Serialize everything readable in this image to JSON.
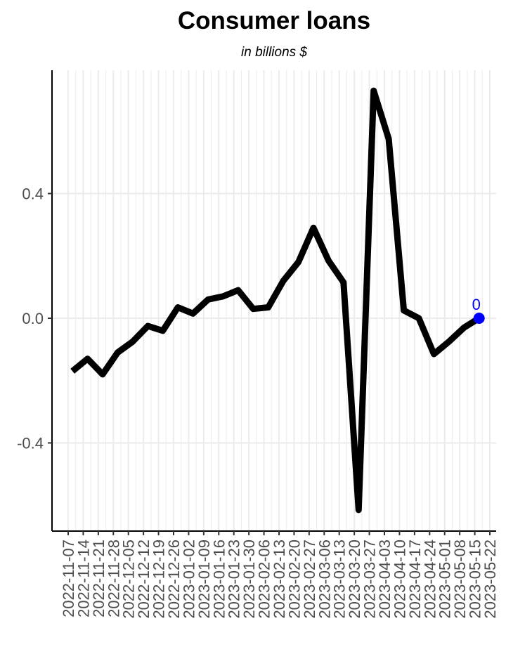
{
  "chart_data": {
    "type": "line",
    "title": "Consumer loans",
    "subtitle": "in billions $",
    "xlabel": "",
    "ylabel": "",
    "x_tick_labels": [
      "2022-11-07",
      "2022-11-14",
      "2022-11-21",
      "2022-11-28",
      "2022-12-05",
      "2022-12-12",
      "2022-12-19",
      "2022-12-26",
      "2023-01-02",
      "2023-01-09",
      "2023-01-16",
      "2023-01-23",
      "2023-01-30",
      "2023-02-06",
      "2023-02-13",
      "2023-02-20",
      "2023-02-27",
      "2023-03-06",
      "2023-03-13",
      "2023-03-20",
      "2023-03-27",
      "2023-04-03",
      "2023-04-10",
      "2023-04-17",
      "2023-04-24",
      "2023-05-01",
      "2023-05-08",
      "2023-05-15",
      "2023-05-22"
    ],
    "y_ticks": [
      -0.4,
      0.0,
      0.4
    ],
    "y_tick_labels": [
      "-0.4",
      "0.0",
      "0.4"
    ],
    "ylim": [
      -0.62,
      0.8
    ],
    "x_range": [
      "2022-11-07",
      "2023-05-22"
    ],
    "grid": true,
    "series": [
      {
        "color": "#000000",
        "points": [
          {
            "x": "2022-11-09",
            "y": -0.17
          },
          {
            "x": "2022-11-16",
            "y": -0.13
          },
          {
            "x": "2022-11-23",
            "y": -0.18
          },
          {
            "x": "2022-11-30",
            "y": -0.11
          },
          {
            "x": "2022-12-07",
            "y": -0.075
          },
          {
            "x": "2022-12-14",
            "y": -0.025
          },
          {
            "x": "2022-12-21",
            "y": -0.04
          },
          {
            "x": "2022-12-28",
            "y": 0.035
          },
          {
            "x": "2023-01-04",
            "y": 0.015
          },
          {
            "x": "2023-01-11",
            "y": 0.06
          },
          {
            "x": "2023-01-18",
            "y": 0.07
          },
          {
            "x": "2023-01-25",
            "y": 0.09
          },
          {
            "x": "2023-02-01",
            "y": 0.03
          },
          {
            "x": "2023-02-08",
            "y": 0.035
          },
          {
            "x": "2023-02-15",
            "y": 0.12
          },
          {
            "x": "2023-02-22",
            "y": 0.18
          },
          {
            "x": "2023-03-01",
            "y": 0.29
          },
          {
            "x": "2023-03-08",
            "y": 0.185
          },
          {
            "x": "2023-03-15",
            "y": 0.115
          },
          {
            "x": "2023-03-22",
            "y": -0.615
          },
          {
            "x": "2023-03-29",
            "y": 0.73
          },
          {
            "x": "2023-04-05",
            "y": 0.575
          },
          {
            "x": "2023-04-12",
            "y": 0.025
          },
          {
            "x": "2023-04-19",
            "y": 0.0
          },
          {
            "x": "2023-04-26",
            "y": -0.115
          },
          {
            "x": "2023-05-03",
            "y": -0.075
          },
          {
            "x": "2023-05-10",
            "y": -0.03
          },
          {
            "x": "2023-05-17",
            "y": 0.0
          }
        ]
      }
    ],
    "last_point": {
      "x": "2023-05-17",
      "y": 0.0,
      "label": "0",
      "color": "#0000ff"
    }
  }
}
